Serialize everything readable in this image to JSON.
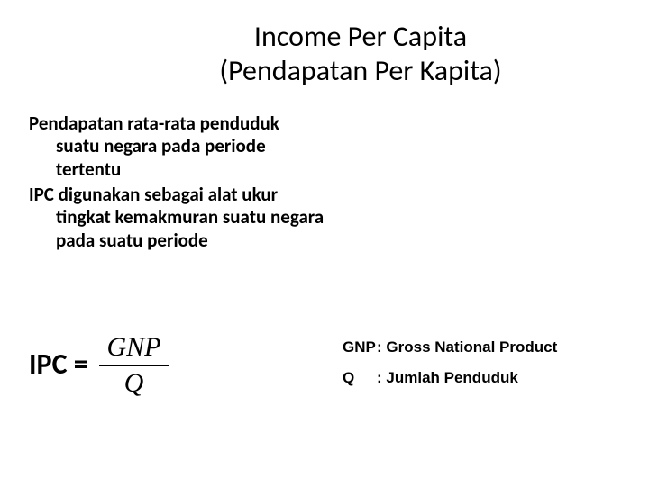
{
  "title": {
    "line1": "Income Per Capita",
    "line2": "(Pendapatan Per Kapita)"
  },
  "body": {
    "para1": "Pendapatan rata-rata penduduk suatu negara pada periode tertentu",
    "para2": "IPC digunakan sebagai alat ukur tingkat kemakmuran suatu negara pada suatu periode"
  },
  "formula": {
    "lhs": "IPC = ",
    "numerator": "GNP",
    "denominator": "Q"
  },
  "legend": {
    "gnp_key": "GNP",
    "gnp_sep": ": ",
    "gnp_val": "Gross National Product",
    "q_key": "Q",
    "q_sep": ": ",
    "q_val": "Jumlah Penduduk"
  },
  "style": {
    "background_color": "#ffffff",
    "text_color": "#000000",
    "title_fontsize": 32,
    "body_fontsize": 21,
    "formula_fontsize": 32,
    "legend_fontsize": 17
  }
}
